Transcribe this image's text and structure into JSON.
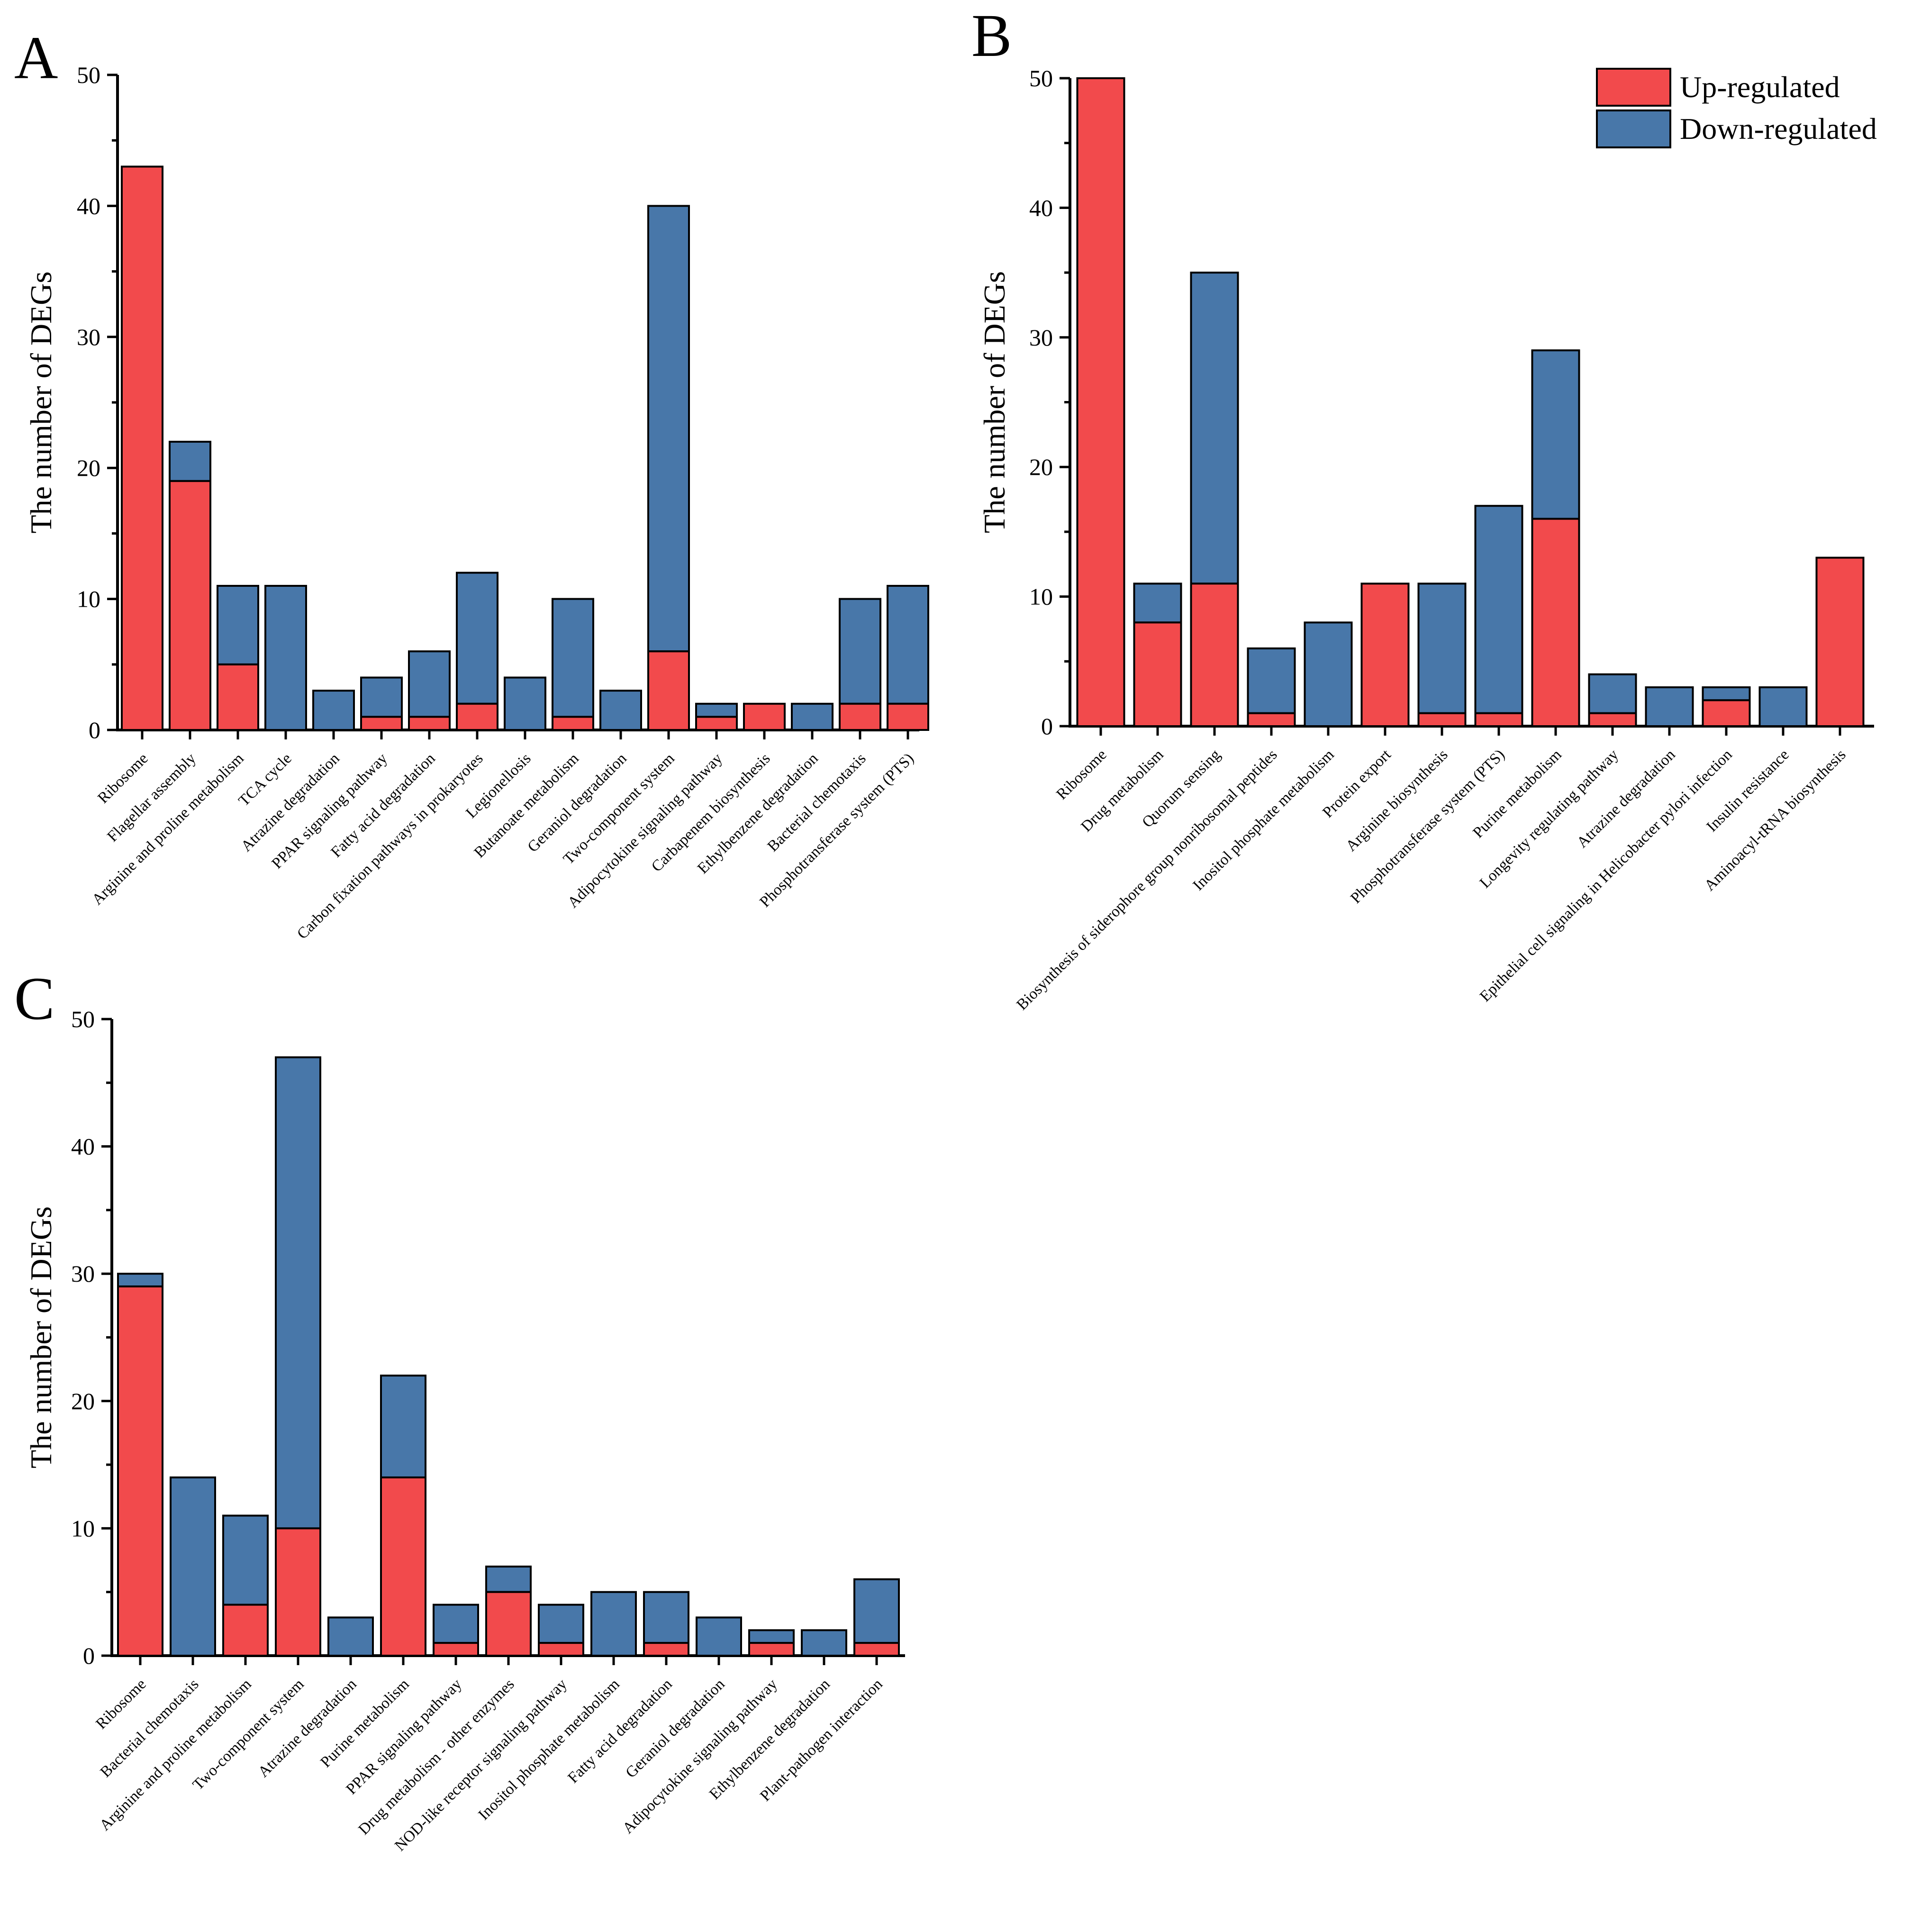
{
  "legend": {
    "up_label": "Up-regulated",
    "down_label": "Down-regulated"
  },
  "colors": {
    "up": "#f24a4c",
    "down": "#4877a9"
  },
  "chart_data": [
    {
      "panel": "A",
      "type": "bar",
      "stacked": true,
      "ylabel": "The number of DEGs",
      "ylim": [
        0,
        50
      ],
      "yticks": [
        0,
        10,
        20,
        30,
        40,
        50
      ],
      "categories": [
        "Ribosome",
        "Flagellar assembly",
        "Arginine and proline metabolism",
        "TCA cycle",
        "Atrazine degradation",
        "PPAR signaling pathway",
        "Fatty acid degradation",
        "Carbon fixation pathways in prokaryotes",
        "Legionellosis",
        "Butanoate metabolism",
        "Geraniol degradation",
        "Two-component system",
        "Adipocytokine signaling pathway",
        "Carbapenem biosynthesis",
        "Ethylbenzene degradation",
        "Bacterial chemotaxis",
        "Phosphotransferase system (PTS)"
      ],
      "series": [
        {
          "name": "Up-regulated",
          "values": [
            43,
            19,
            5,
            0,
            0,
            1,
            1,
            2,
            0,
            1,
            0,
            6,
            1,
            2,
            0,
            2,
            2
          ]
        },
        {
          "name": "Down-regulated",
          "values": [
            0,
            3,
            6,
            11,
            3,
            3,
            5,
            10,
            4,
            9,
            3,
            34,
            1,
            0,
            2,
            8,
            9
          ]
        }
      ]
    },
    {
      "panel": "B",
      "type": "bar",
      "stacked": true,
      "ylabel": "The number of DEGs",
      "ylim": [
        0,
        50
      ],
      "yticks": [
        0,
        10,
        20,
        30,
        40,
        50
      ],
      "categories": [
        "Ribosome",
        "Drug metabolism",
        "Quorum sensing",
        "Biosynthesis of siderophore group nonribosomal peptides",
        "Inositol phosphate metabolism",
        "Protein export",
        "Arginine biosynthesis",
        "Phosphotransferase system (PTS)",
        "Purine metabolism",
        "Longevity regulating pathway",
        "Atrazine degradation",
        "Epithelial cell signaling in Helicobacter pylori infection",
        "Insulin resistance",
        "Aminoacyl-tRNA biosynthesis"
      ],
      "series": [
        {
          "name": "Up-regulated",
          "values": [
            50,
            8,
            11,
            1,
            0,
            11,
            1,
            1,
            16,
            1,
            0,
            2,
            0,
            13
          ]
        },
        {
          "name": "Down-regulated",
          "values": [
            0,
            3,
            24,
            5,
            8,
            0,
            10,
            16,
            13,
            3,
            3,
            1,
            3,
            0
          ]
        }
      ]
    },
    {
      "panel": "C",
      "type": "bar",
      "stacked": true,
      "ylabel": "The number of DEGs",
      "ylim": [
        0,
        50
      ],
      "yticks": [
        0,
        10,
        20,
        30,
        40,
        50
      ],
      "categories": [
        "Ribosome",
        "Bacterial chemotaxis",
        "Arginine and proline metabolism",
        "Two-component system",
        "Atrazine degradation",
        "Purine metabolism",
        "PPAR signaling pathway",
        "Drug metabolism - other enzymes",
        "NOD-like receptor signaling pathway",
        "Inositol phosphate metabolism",
        "Fatty acid degradation",
        "Geraniol degradation",
        "Adipocytokine signaling pathway",
        "Ethylbenzene degradation",
        "Plant-pathogen interaction"
      ],
      "series": [
        {
          "name": "Up-regulated",
          "values": [
            29,
            0,
            4,
            10,
            0,
            14,
            1,
            5,
            1,
            0,
            1,
            0,
            1,
            0,
            1
          ]
        },
        {
          "name": "Down-regulated",
          "values": [
            1,
            14,
            7,
            37,
            3,
            8,
            3,
            2,
            3,
            5,
            4,
            3,
            1,
            2,
            5
          ]
        }
      ]
    }
  ]
}
